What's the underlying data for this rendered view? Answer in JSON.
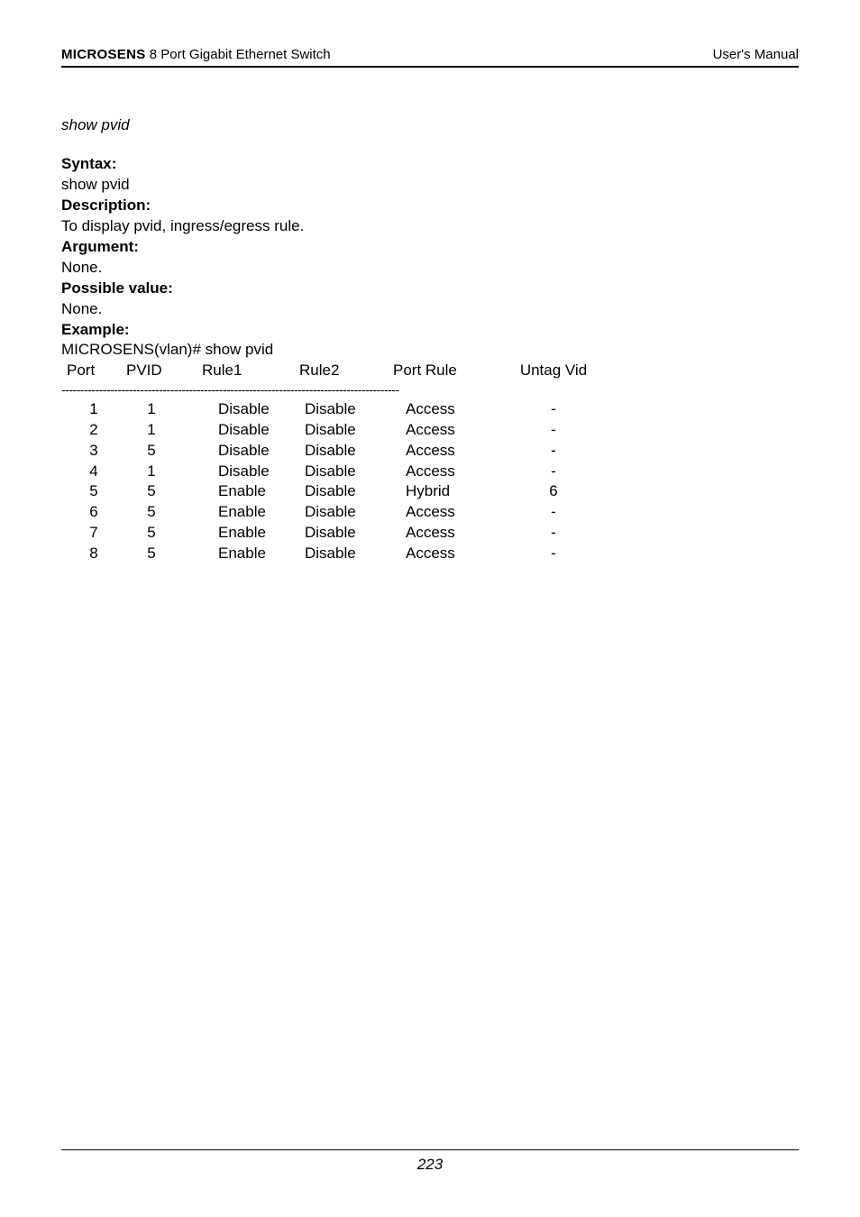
{
  "header": {
    "brand": "MICROSENS",
    "product": " 8 Port Gigabit Ethernet Switch",
    "right": "User's Manual"
  },
  "command_title": "show pvid",
  "sections": {
    "syntax_label": "Syntax:",
    "syntax_value": "show pvid",
    "description_label": "Description:",
    "description_value": "To display pvid, ingress/egress rule.",
    "argument_label": "Argument:",
    "argument_value": "None.",
    "possible_label": "Possible value:",
    "possible_value": "None.",
    "example_label": "Example:",
    "example_prompt": "MICROSENS(vlan)# show pvid"
  },
  "table": {
    "headers": {
      "port": "Port",
      "pvid": "PVID",
      "rule1": "Rule1",
      "rule2": "Rule2",
      "port_rule": "Port Rule",
      "untag": "Untag Vid"
    },
    "dash": "------------------------------------------------------------------------------------------",
    "rows": [
      {
        "port": "1",
        "pvid": "1",
        "rule1": "Disable",
        "rule2": "Disable",
        "prule": "Access",
        "untag": "-"
      },
      {
        "port": "2",
        "pvid": "1",
        "rule1": "Disable",
        "rule2": "Disable",
        "prule": "Access",
        "untag": "-"
      },
      {
        "port": "3",
        "pvid": "5",
        "rule1": "Disable",
        "rule2": "Disable",
        "prule": "Access",
        "untag": "-"
      },
      {
        "port": "4",
        "pvid": "1",
        "rule1": "Disable",
        "rule2": "Disable",
        "prule": "Access",
        "untag": "-"
      },
      {
        "port": "5",
        "pvid": "5",
        "rule1": "Enable",
        "rule2": "Disable",
        "prule": "Hybrid",
        "untag": "6"
      },
      {
        "port": "6",
        "pvid": "5",
        "rule1": "Enable",
        "rule2": "Disable",
        "prule": "Access",
        "untag": "-"
      },
      {
        "port": "7",
        "pvid": "5",
        "rule1": "Enable",
        "rule2": "Disable",
        "prule": "Access",
        "untag": "-"
      },
      {
        "port": "8",
        "pvid": "5",
        "rule1": "Enable",
        "rule2": "Disable",
        "prule": "Access",
        "untag": "-"
      }
    ]
  },
  "footer": {
    "page_number": "223"
  }
}
